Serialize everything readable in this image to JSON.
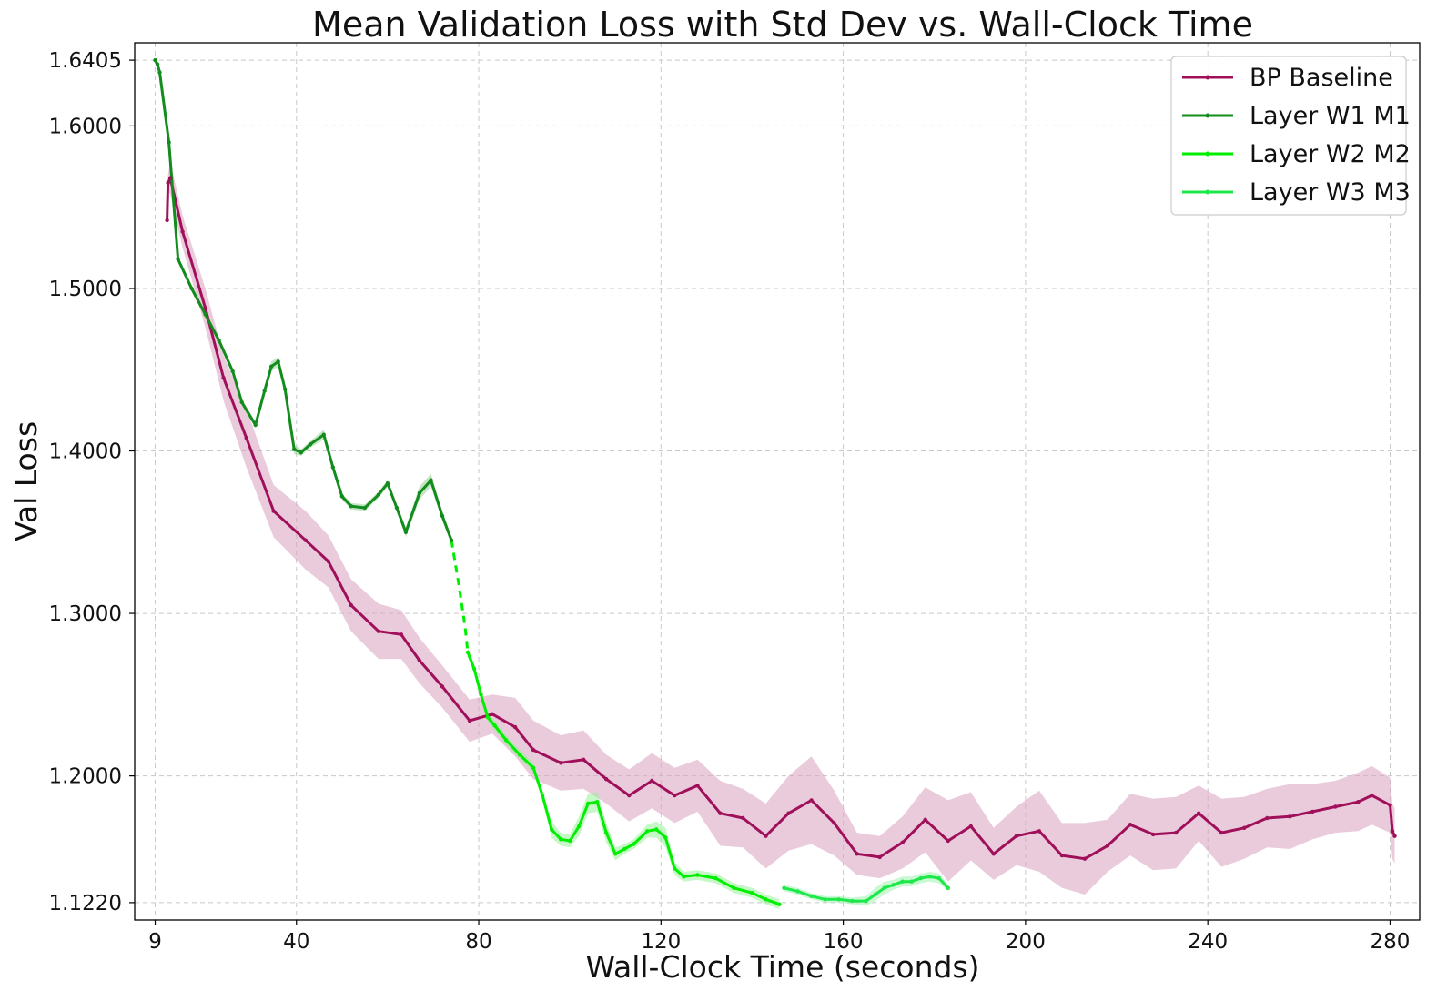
{
  "chart_data": {
    "type": "line",
    "title": "Mean Validation Loss with Std Dev vs. Wall-Clock Time",
    "xlabel": "Wall-Clock Time (seconds)",
    "ylabel": "Val Loss",
    "xlim": [
      4.5,
      286.5
    ],
    "ylim": [
      1.1113,
      1.6512
    ],
    "xticks": [
      9,
      40,
      80,
      120,
      160,
      200,
      240,
      280
    ],
    "xtick_labels": [
      "9",
      "40",
      "80",
      "120",
      "160",
      "200",
      "240",
      "280"
    ],
    "yticks": [
      1.122,
      1.2,
      1.3,
      1.4,
      1.5,
      1.6,
      1.6405
    ],
    "ytick_labels": [
      "1.1220",
      "1.2000",
      "1.3000",
      "1.4000",
      "1.5000",
      "1.6000",
      "1.6405"
    ],
    "grid": true,
    "legend_position": "top-right",
    "series": [
      {
        "name": "BP Baseline",
        "color": "#a0105a",
        "band_color": "#d8a0bf",
        "x": [
          11.6,
          11.8,
          12.3,
          15.0,
          20.0,
          24.0,
          29.0,
          35.0,
          42.0,
          47.0,
          52.0,
          58.0,
          63.0,
          67.0,
          72.0,
          78.0,
          83.0,
          88.0,
          92.0,
          98.0,
          103.0,
          108.0,
          113.0,
          118.0,
          123.0,
          128.0,
          133.0,
          138.0,
          143.0,
          148.0,
          153.0,
          158.0,
          163.0,
          168.0,
          173.0,
          178.0,
          183.0,
          188.0,
          193.0,
          198.0,
          203.0,
          208.0,
          213.0,
          218.0,
          223.0,
          228.0,
          233.0,
          238.0,
          243.0,
          248.0,
          253.0,
          258.0,
          263.0,
          268.0,
          273.0,
          276.0,
          280.0,
          280.5,
          281.0
        ],
        "y": [
          1.542,
          1.565,
          1.568,
          1.535,
          1.488,
          1.445,
          1.408,
          1.363,
          1.345,
          1.332,
          1.305,
          1.289,
          1.287,
          1.271,
          1.255,
          1.234,
          1.238,
          1.23,
          1.216,
          1.208,
          1.21,
          1.198,
          1.188,
          1.197,
          1.188,
          1.194,
          1.177,
          1.174,
          1.163,
          1.177,
          1.185,
          1.171,
          1.152,
          1.15,
          1.159,
          1.173,
          1.16,
          1.169,
          1.152,
          1.163,
          1.166,
          1.151,
          1.149,
          1.157,
          1.17,
          1.164,
          1.165,
          1.177,
          1.165,
          1.168,
          1.174,
          1.175,
          1.178,
          1.181,
          1.184,
          1.188,
          1.182,
          1.166,
          1.163
        ],
        "std": [
          0.0,
          0.005,
          0.01,
          0.01,
          0.012,
          0.014,
          0.018,
          0.016,
          0.018,
          0.016,
          0.016,
          0.017,
          0.015,
          0.014,
          0.013,
          0.013,
          0.012,
          0.018,
          0.018,
          0.017,
          0.018,
          0.015,
          0.016,
          0.017,
          0.017,
          0.016,
          0.02,
          0.018,
          0.02,
          0.023,
          0.027,
          0.02,
          0.013,
          0.013,
          0.016,
          0.02,
          0.025,
          0.021,
          0.016,
          0.018,
          0.025,
          0.02,
          0.022,
          0.016,
          0.019,
          0.022,
          0.022,
          0.017,
          0.021,
          0.019,
          0.018,
          0.02,
          0.017,
          0.016,
          0.018,
          0.018,
          0.017,
          0.017,
          0.017
        ]
      },
      {
        "name": "Layer W1 M1",
        "color": "#128c1c",
        "band_color": "#96cf96",
        "x": [
          9.0,
          9.5,
          10.0,
          12.0,
          14.0,
          17.0,
          20.0,
          23.0,
          26.0,
          28.0,
          31.0,
          33.0,
          34.5,
          36.0,
          37.5,
          39.5,
          41.0,
          43.0,
          46.0,
          48.0,
          50.0,
          52.0,
          55.0,
          58.0,
          60.0,
          62.0,
          64.0,
          67.0,
          69.5,
          72.0,
          74.0
        ],
        "y": [
          1.6405,
          1.638,
          1.633,
          1.59,
          1.518,
          1.5,
          1.484,
          1.468,
          1.449,
          1.43,
          1.416,
          1.437,
          1.452,
          1.455,
          1.438,
          1.401,
          1.399,
          1.404,
          1.41,
          1.39,
          1.372,
          1.366,
          1.365,
          1.373,
          1.38,
          1.365,
          1.35,
          1.374,
          1.382,
          1.36,
          1.345
        ],
        "std": [
          0.0,
          0.002,
          0.002,
          0.002,
          0.002,
          0.002,
          0.002,
          0.002,
          0.002,
          0.002,
          0.002,
          0.002,
          0.003,
          0.003,
          0.003,
          0.003,
          0.002,
          0.002,
          0.003,
          0.002,
          0.002,
          0.002,
          0.002,
          0.002,
          0.002,
          0.002,
          0.003,
          0.004,
          0.004,
          0.003,
          0.002
        ]
      },
      {
        "name": "Layer W2 M2",
        "color": "#00ee00",
        "band_color": "#98f098",
        "dashed_x": [
          74.0,
          75.5,
          77.0,
          77.6
        ],
        "dashed_y": [
          1.345,
          1.32,
          1.292,
          1.276
        ],
        "x": [
          77.6,
          79.0,
          80.5,
          82.0,
          83.5,
          86.0,
          89.0,
          92.0,
          94.0,
          96.0,
          98.0,
          100.0,
          102.0,
          104.0,
          106.0,
          108.0,
          110.0,
          112.0,
          114.0,
          117.0,
          119.0,
          121.0,
          123.0,
          125.0,
          128.0,
          132.0,
          136.0,
          140.0,
          143.0,
          146.0
        ],
        "y": [
          1.276,
          1.266,
          1.25,
          1.236,
          1.231,
          1.222,
          1.213,
          1.205,
          1.188,
          1.167,
          1.161,
          1.16,
          1.169,
          1.183,
          1.184,
          1.165,
          1.152,
          1.155,
          1.158,
          1.166,
          1.167,
          1.162,
          1.143,
          1.138,
          1.139,
          1.137,
          1.131,
          1.128,
          1.124,
          1.121
        ],
        "std": [
          0.003,
          0.003,
          0.003,
          0.003,
          0.003,
          0.003,
          0.003,
          0.003,
          0.003,
          0.005,
          0.004,
          0.004,
          0.006,
          0.006,
          0.006,
          0.006,
          0.004,
          0.003,
          0.003,
          0.004,
          0.005,
          0.006,
          0.004,
          0.003,
          0.003,
          0.003,
          0.003,
          0.003,
          0.003,
          0.003
        ]
      },
      {
        "name": "Layer W3 M3",
        "color": "#1de84a",
        "band_color": "#9cf2ad",
        "x": [
          147.0,
          150.0,
          153.0,
          156.0,
          159.0,
          162.0,
          165.0,
          167.0,
          169.0,
          171.0,
          173.0,
          175.0,
          177.0,
          179.0,
          181.0,
          183.0
        ],
        "y": [
          1.131,
          1.129,
          1.126,
          1.124,
          1.124,
          1.123,
          1.123,
          1.127,
          1.131,
          1.133,
          1.135,
          1.135,
          1.137,
          1.138,
          1.137,
          1.131
        ],
        "std": [
          0.002,
          0.002,
          0.002,
          0.002,
          0.002,
          0.002,
          0.003,
          0.004,
          0.004,
          0.003,
          0.003,
          0.003,
          0.003,
          0.003,
          0.003,
          0.002
        ]
      }
    ]
  }
}
